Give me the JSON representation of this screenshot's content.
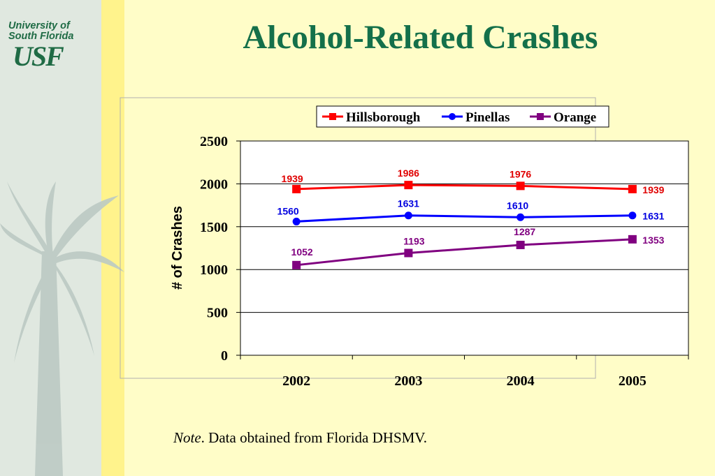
{
  "title": "Alcohol-Related Crashes",
  "logo": {
    "line1": "University of",
    "line2": "South Florida",
    "line3": "USF"
  },
  "note": {
    "label": "Note",
    "text": ".  Data obtained from Florida DHSMV."
  },
  "chart_data": {
    "type": "line",
    "categories": [
      "2002",
      "2003",
      "2004",
      "2005"
    ],
    "ylabel": "# of Crashes",
    "xlabel": "",
    "ylim": [
      0,
      2500
    ],
    "yticks": [
      0,
      500,
      1000,
      1500,
      2000,
      2500
    ],
    "grid": "horizontal",
    "legend": "top",
    "series": [
      {
        "name": "Hillsborough",
        "values": [
          1939,
          1986,
          1976,
          1939
        ],
        "color": "#ff0000",
        "labelColor": "#e00000",
        "marker": "square"
      },
      {
        "name": "Pinellas",
        "values": [
          1560,
          1631,
          1610,
          1631
        ],
        "color": "#0000ff",
        "labelColor": "#0000e0",
        "marker": "circle"
      },
      {
        "name": "Orange",
        "values": [
          1052,
          1193,
          1287,
          1353
        ],
        "color": "#800080",
        "labelColor": "#800080",
        "marker": "square"
      }
    ]
  },
  "colors": {
    "title": "#14704a",
    "logo": "#1f6b45",
    "stripe": "#fff38c",
    "background": "#fffdc8"
  }
}
